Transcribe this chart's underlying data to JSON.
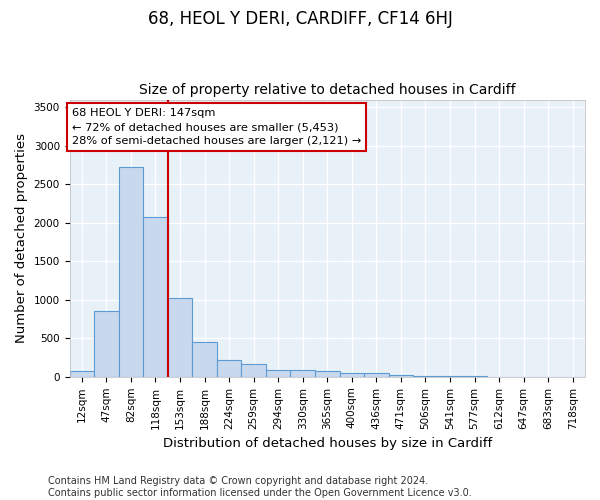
{
  "title": "68, HEOL Y DERI, CARDIFF, CF14 6HJ",
  "subtitle": "Size of property relative to detached houses in Cardiff",
  "xlabel": "Distribution of detached houses by size in Cardiff",
  "ylabel": "Number of detached properties",
  "categories": [
    "12sqm",
    "47sqm",
    "82sqm",
    "118sqm",
    "153sqm",
    "188sqm",
    "224sqm",
    "259sqm",
    "294sqm",
    "330sqm",
    "365sqm",
    "400sqm",
    "436sqm",
    "471sqm",
    "506sqm",
    "541sqm",
    "577sqm",
    "612sqm",
    "647sqm",
    "683sqm",
    "718sqm"
  ],
  "values": [
    75,
    850,
    2725,
    2075,
    1020,
    450,
    215,
    160,
    95,
    85,
    80,
    50,
    45,
    30,
    12,
    8,
    6,
    4,
    3,
    2,
    2
  ],
  "bar_color": "#c8d9ee",
  "bar_edge_color": "#5b9bd5",
  "vline_index": 4,
  "vline_color": "#cc0000",
  "annotation_text_line1": "68 HEOL Y DERI: 147sqm",
  "annotation_text_line2": "← 72% of detached houses are smaller (5,453)",
  "annotation_text_line3": "28% of semi-detached houses are larger (2,121) →",
  "annotation_box_color": "#ffffff",
  "annotation_box_edge": "#cc0000",
  "ylim": [
    0,
    3600
  ],
  "yticks": [
    0,
    500,
    1000,
    1500,
    2000,
    2500,
    3000,
    3500
  ],
  "footer_text": "Contains HM Land Registry data © Crown copyright and database right 2024.\nContains public sector information licensed under the Open Government Licence v3.0.",
  "fig_bg_color": "#ffffff",
  "plot_bg_color": "#e8f0f8",
  "grid_color": "#ffffff",
  "title_fontsize": 12,
  "subtitle_fontsize": 10,
  "axis_label_fontsize": 9.5,
  "tick_fontsize": 7.5,
  "footer_fontsize": 7
}
